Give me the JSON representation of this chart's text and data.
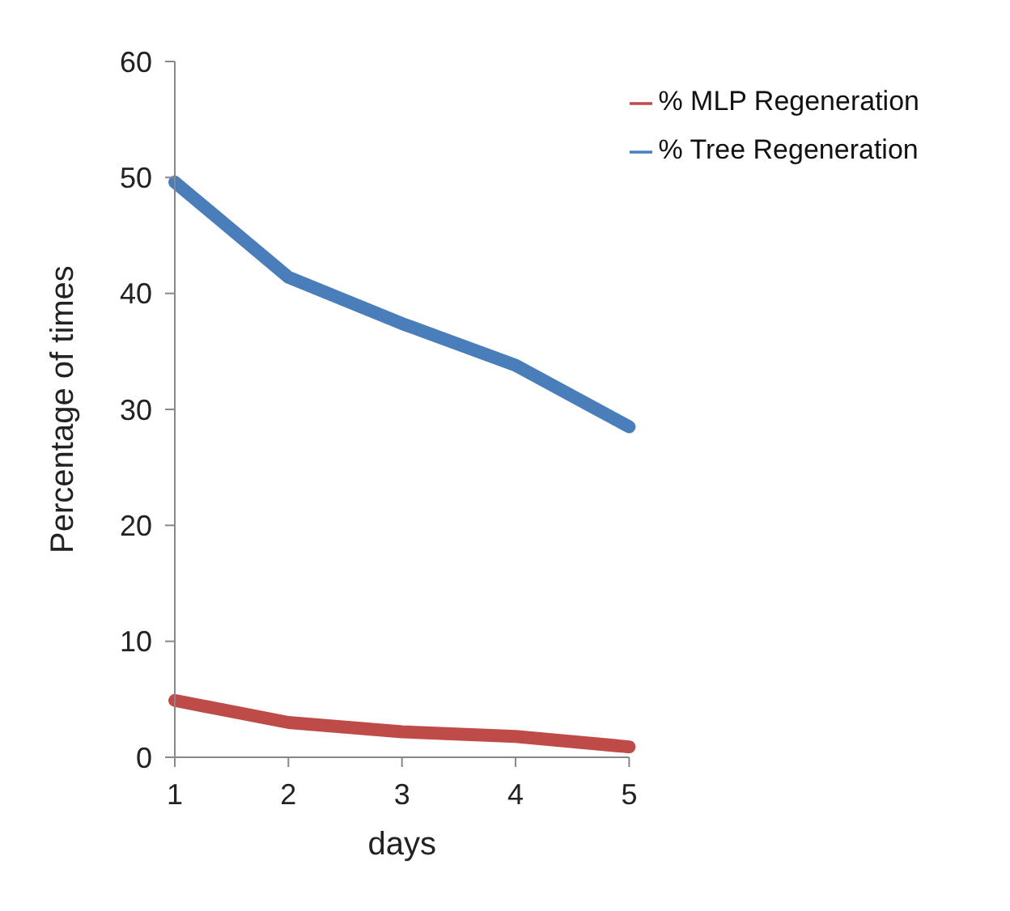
{
  "chart_data": {
    "type": "line",
    "xlabel": "days",
    "ylabel": "Percentage of times",
    "categories": [
      "1",
      "2",
      "3",
      "4",
      "5"
    ],
    "ylim": [
      0,
      60
    ],
    "yticks": [
      0,
      10,
      20,
      30,
      40,
      50,
      60
    ],
    "grid": false,
    "legend": "top right",
    "marker": "none",
    "series": [
      {
        "name": "% Tree Regeneration",
        "color": "#4a7ebb",
        "values": [
          49.6,
          41.4,
          37.4,
          33.8,
          28.5
        ]
      },
      {
        "name": "% MLP Regeneration",
        "color": "#be4b48",
        "values": [
          4.9,
          3.0,
          2.2,
          1.8,
          0.9
        ]
      }
    ]
  }
}
